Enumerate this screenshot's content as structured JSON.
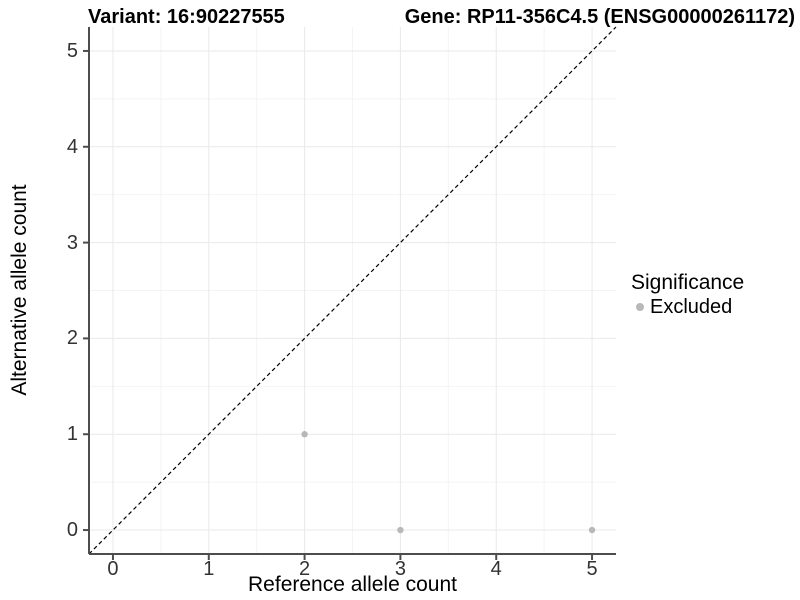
{
  "titles": {
    "variant": "Variant: 16:90227555",
    "gene": "Gene: RP11-356C4.5 (ENSG00000261172)"
  },
  "chart_data": {
    "type": "scatter",
    "xlabel": "Reference allele count",
    "ylabel": "Alternative allele count",
    "x_ticks": [
      0,
      1,
      2,
      3,
      4,
      5
    ],
    "y_ticks": [
      0,
      1,
      2,
      3,
      4,
      5
    ],
    "x_minor_ticks": [
      0.5,
      1.5,
      2.5,
      3.5,
      4.5
    ],
    "y_minor_ticks": [
      0.5,
      1.5,
      2.5,
      3.5,
      4.5
    ],
    "xlim": [
      -0.25,
      5.25
    ],
    "ylim": [
      -0.25,
      5.25
    ],
    "grid": "on",
    "points": [
      {
        "x": 2,
        "y": 1
      },
      {
        "x": 3,
        "y": 0
      },
      {
        "x": 5,
        "y": 0
      }
    ],
    "identity_line": {
      "style": "dashed",
      "from": [
        -0.25,
        -0.25
      ],
      "to": [
        5.25,
        5.25
      ]
    },
    "legend": {
      "title": "Significance",
      "position": "right",
      "items": [
        {
          "label": "Excluded",
          "color": "#b8b8b8"
        }
      ]
    }
  },
  "colors": {
    "axis_line": "#4d4d4d",
    "tick_mark": "#4d4d4d",
    "grid_major": "#e9e9e9",
    "grid_minor": "#f4f4f4",
    "point": "#b8b8b8",
    "identity_line": "#000000",
    "tick_label": "#333333",
    "background": "#ffffff"
  }
}
